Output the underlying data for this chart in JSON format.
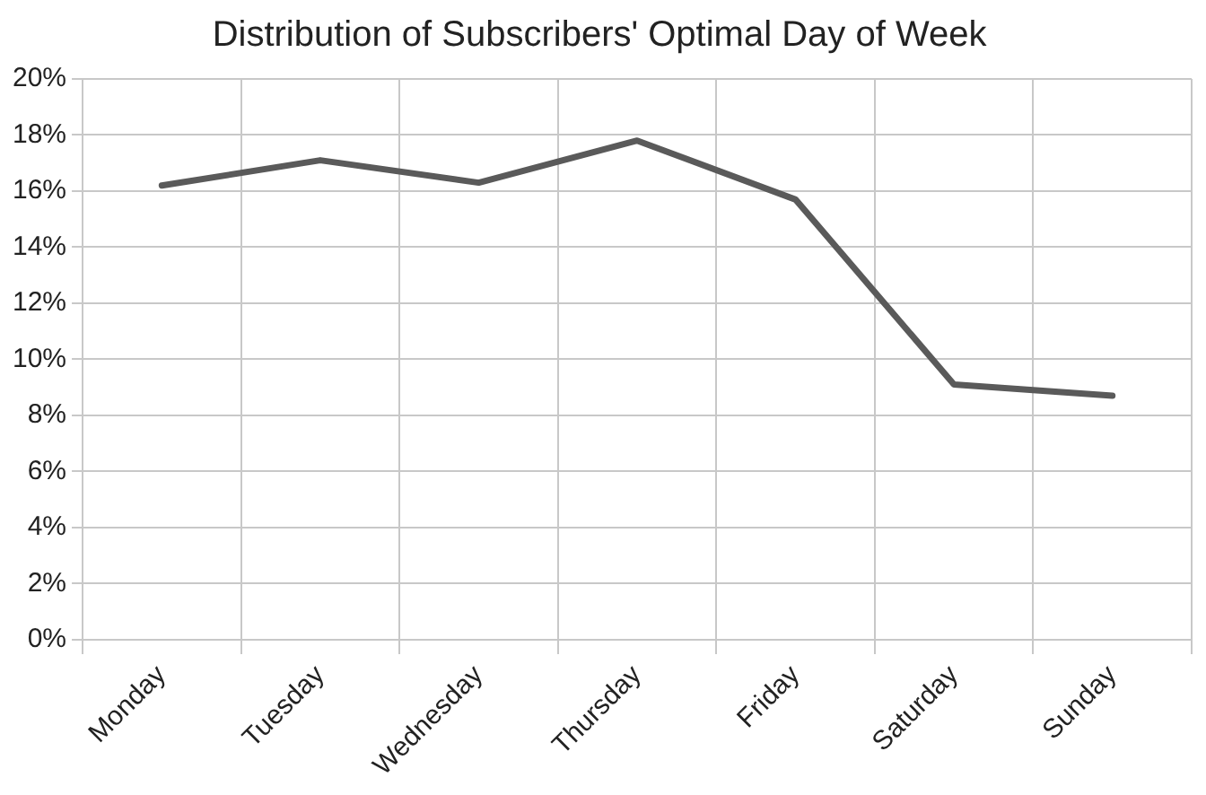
{
  "chart_data": {
    "type": "line",
    "title": "Distribution of Subscribers' Optimal Day of Week",
    "categories": [
      "Monday",
      "Tuesday",
      "Wednesday",
      "Thursday",
      "Friday",
      "Saturday",
      "Sunday"
    ],
    "series": [
      {
        "color": "#5a5a5a",
        "values": [
          16.2,
          17.1,
          16.3,
          17.8,
          15.7,
          9.1,
          8.7
        ]
      }
    ],
    "ylim": [
      0,
      20
    ],
    "yticks": [
      {
        "value": 0,
        "label": "0%"
      },
      {
        "value": 2,
        "label": "2%"
      },
      {
        "value": 4,
        "label": "4%"
      },
      {
        "value": 6,
        "label": "6%"
      },
      {
        "value": 8,
        "label": "8%"
      },
      {
        "value": 10,
        "label": "10%"
      },
      {
        "value": 12,
        "label": "12%"
      },
      {
        "value": 14,
        "label": "14%"
      },
      {
        "value": 16,
        "label": "16%"
      },
      {
        "value": 18,
        "label": "18%"
      },
      {
        "value": 20,
        "label": "20%"
      }
    ],
    "grid": true,
    "legend": false,
    "marker": "none",
    "line_style": "solid"
  }
}
